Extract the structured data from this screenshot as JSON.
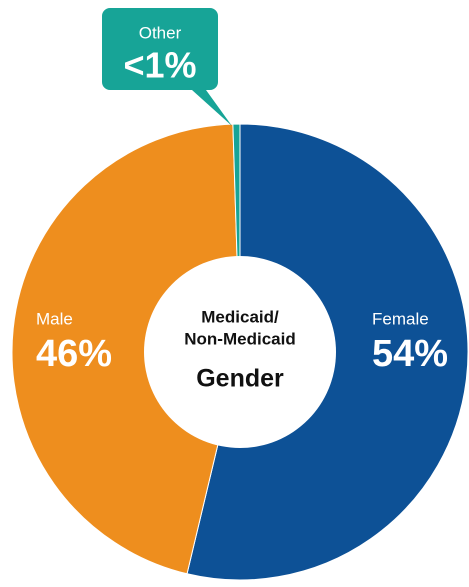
{
  "chart_data": {
    "type": "donut",
    "title_lines": [
      "Medicaid/",
      "Non-Medicaid"
    ],
    "title": "Gender",
    "categories": [
      "Female",
      "Male",
      "Other"
    ],
    "values": [
      54,
      46,
      0.5
    ],
    "value_labels": [
      "54%",
      "46%",
      "<1%"
    ],
    "colors": [
      "#0d5196",
      "#ee8e1e",
      "#17a497"
    ]
  }
}
